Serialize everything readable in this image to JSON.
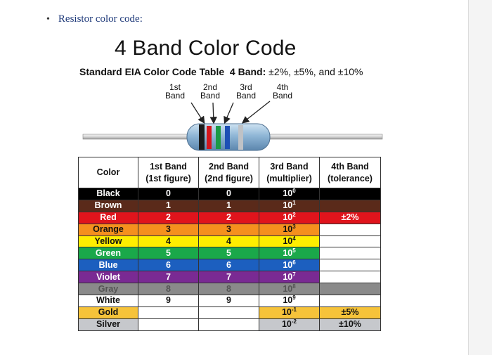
{
  "bullet": {
    "marker": "•",
    "text": "Resistor color code:"
  },
  "title": "4 Band Color Code",
  "subtitle": {
    "bold": "Standard EIA Color Code Table",
    "band_label": "4 Band:",
    "tolerances": "±2%, ±5%, and ±10%"
  },
  "band_labels": [
    "1st\nBand",
    "2nd\nBand",
    "3rd\nBand",
    "4th\nBand"
  ],
  "table": {
    "headers": [
      "Color",
      "1st Band\n(1st figure)",
      "2nd Band\n(2nd figure)",
      "3rd Band\n(multiplier)",
      "4th Band\n(tolerance)"
    ],
    "rows": [
      {
        "name": "Black",
        "bg": "#000000",
        "fg": "#ffffff",
        "b1": "0",
        "b2": "0",
        "mult": "10",
        "exp": "0",
        "tol": ""
      },
      {
        "name": "Brown",
        "bg": "#5a2a1a",
        "fg": "#ffffff",
        "b1": "1",
        "b2": "1",
        "mult": "10",
        "exp": "1",
        "tol": ""
      },
      {
        "name": "Red",
        "bg": "#e0141c",
        "fg": "#ffffff",
        "b1": "2",
        "b2": "2",
        "mult": "10",
        "exp": "2",
        "tol": "±2%"
      },
      {
        "name": "Orange",
        "bg": "#f5901e",
        "fg": "#111111",
        "b1": "3",
        "b2": "3",
        "mult": "10",
        "exp": "3",
        "tol": ""
      },
      {
        "name": "Yellow",
        "bg": "#ffee00",
        "fg": "#111111",
        "b1": "4",
        "b2": "4",
        "mult": "10",
        "exp": "4",
        "tol": ""
      },
      {
        "name": "Green",
        "bg": "#1aa84a",
        "fg": "#ffffff",
        "b1": "5",
        "b2": "5",
        "mult": "10",
        "exp": "5",
        "tol": ""
      },
      {
        "name": "Blue",
        "bg": "#1c5fbf",
        "fg": "#ffffff",
        "b1": "6",
        "b2": "6",
        "mult": "10",
        "exp": "6",
        "tol": ""
      },
      {
        "name": "Violet",
        "bg": "#7a2a93",
        "fg": "#ffffff",
        "b1": "7",
        "b2": "7",
        "mult": "10",
        "exp": "7",
        "tol": ""
      },
      {
        "name": "Gray",
        "bg": "#8a8a8a",
        "fg": "#555555",
        "b1": "8",
        "b2": "8",
        "mult": "10",
        "exp": "8",
        "tol": ""
      },
      {
        "name": "White",
        "bg": "#ffffff",
        "fg": "#111111",
        "b1": "9",
        "b2": "9",
        "mult": "10",
        "exp": "9",
        "tol": ""
      },
      {
        "name": "Gold",
        "bg": "#f6c33a",
        "fg": "#111111",
        "b1": "",
        "b2": "",
        "mult": "10",
        "exp": "-1",
        "tol": "±5%"
      },
      {
        "name": "Silver",
        "bg": "#c6c8cc",
        "fg": "#111111",
        "b1": "",
        "b2": "",
        "mult": "10",
        "exp": "-2",
        "tol": "±10%"
      }
    ]
  }
}
